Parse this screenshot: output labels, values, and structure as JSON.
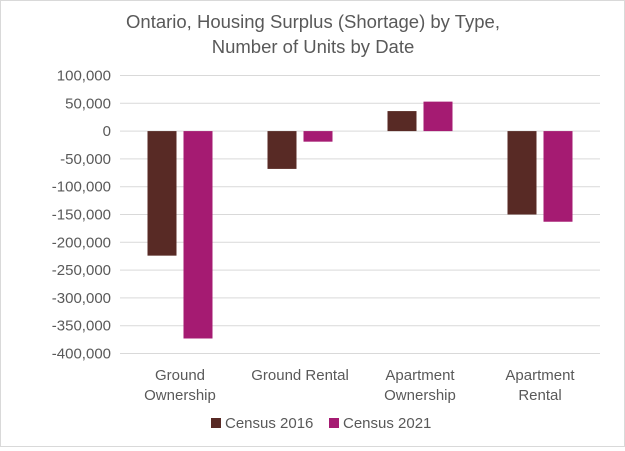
{
  "chart_data": {
    "type": "bar",
    "title": [
      "Ontario, Housing Surplus (Shortage) by Type,",
      "Number of Units by Date"
    ],
    "categories": [
      [
        "Ground",
        "Ownership"
      ],
      [
        "Ground Rental"
      ],
      [
        "Apartment",
        "Ownership"
      ],
      [
        "Apartment",
        "Rental"
      ]
    ],
    "series": [
      {
        "name": "Census 2016",
        "color": "#582a25",
        "values": [
          -224000,
          -68000,
          36000,
          -150000
        ]
      },
      {
        "name": "Census 2021",
        "color": "#a51b72",
        "values": [
          -373000,
          -19000,
          53000,
          -163000
        ]
      }
    ],
    "ylim": [
      -400000,
      100000
    ],
    "yticks": [
      100000,
      50000,
      0,
      -50000,
      -100000,
      -150000,
      -200000,
      -250000,
      -300000,
      -350000,
      -400000
    ],
    "ytick_labels": [
      "100,000",
      "50,000",
      "0",
      "-50,000",
      "-100,000",
      "-150,000",
      "-200,000",
      "-250,000",
      "-300,000",
      "-350,000",
      "-400,000"
    ],
    "grid": true,
    "legend": "bottom",
    "xlabel": "",
    "ylabel": ""
  }
}
